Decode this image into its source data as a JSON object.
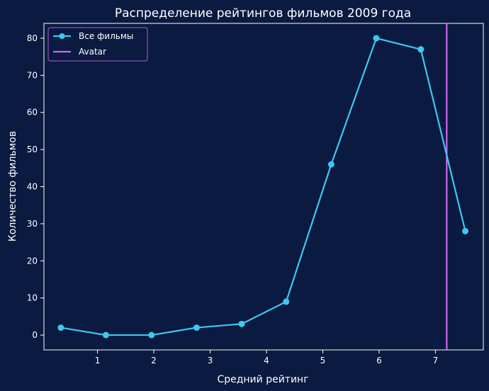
{
  "chart_data": {
    "type": "line",
    "title": "Распределение рейтингов фильмов 2009 года",
    "xlabel": "Средний рейтинг",
    "ylabel": "Количество фильмов",
    "xlim": [
      0.05,
      7.85
    ],
    "ylim": [
      -4,
      84
    ],
    "xticks": [
      1,
      2,
      3,
      4,
      5,
      6,
      7
    ],
    "yticks": [
      0,
      10,
      20,
      30,
      40,
      50,
      60,
      70,
      80
    ],
    "grid": false,
    "legend_position": "top-left",
    "series": [
      {
        "name": "Все фильмы",
        "color": "#3ec8f0",
        "marker": "circle",
        "x": [
          0.35,
          1.15,
          1.96,
          2.76,
          3.56,
          4.35,
          5.15,
          5.95,
          6.74,
          7.53
        ],
        "y": [
          2,
          0,
          0,
          2,
          3,
          9,
          46,
          80,
          77,
          28
        ]
      }
    ],
    "reference_lines": [
      {
        "name": "Avatar",
        "orientation": "vertical",
        "x": 7.2,
        "color": "#d466f0"
      }
    ],
    "colors": {
      "background": "#0a1a40",
      "text": "#ffffff",
      "legend_text": "#d98cf0",
      "legend_border": "#b45cd8"
    }
  }
}
